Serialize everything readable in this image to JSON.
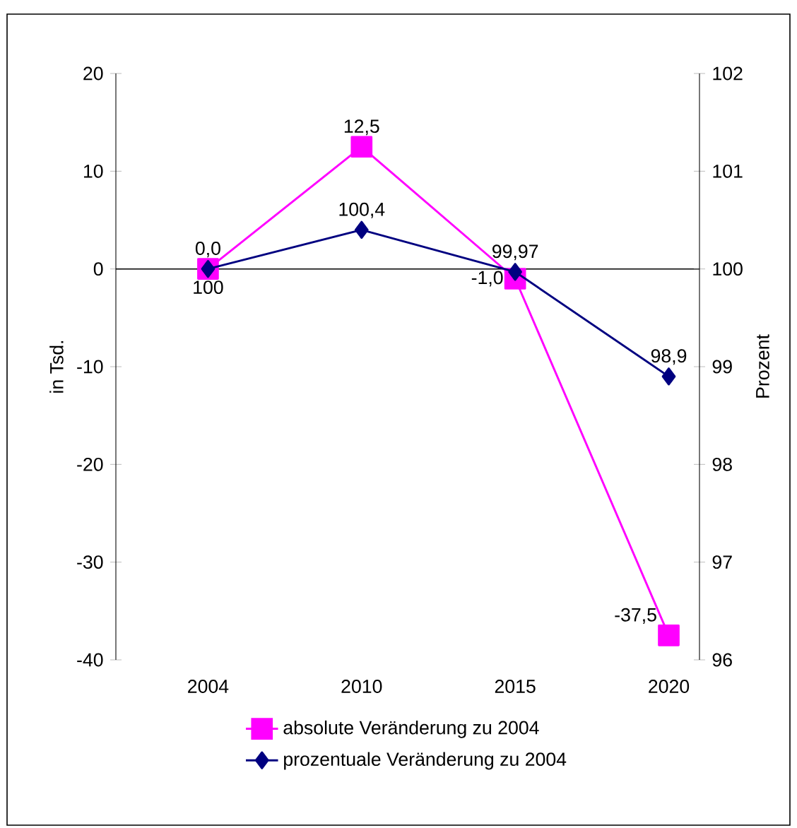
{
  "chart_data": {
    "type": "line",
    "categories": [
      "2004",
      "2010",
      "2015",
      "2020"
    ],
    "ylabel": "in Tsd.",
    "y2label": "Prozent",
    "ylim": [
      -40,
      20
    ],
    "yticks": [
      -40,
      -30,
      -20,
      -10,
      0,
      10,
      20
    ],
    "y2lim": [
      96,
      102
    ],
    "y2ticks": [
      96,
      97,
      98,
      99,
      100,
      101,
      102
    ],
    "legend": "bottom",
    "line_style": "solid",
    "series": [
      {
        "name": "absolute Veränderung zu 2004",
        "color": "#ff00ff",
        "marker": "square",
        "values": [
          0.0,
          12.5,
          -1.0,
          -37.5
        ],
        "value_labels": [
          "0,0",
          "12,5",
          "-1,0",
          "-37,5"
        ]
      },
      {
        "name": "prozentuale Veränderung zu 2004",
        "color": "#000080",
        "marker": "diamond",
        "axis": "y2",
        "values": [
          100,
          100.4,
          99.97,
          98.9
        ],
        "value_labels": [
          "100",
          "100,4",
          "99,97",
          "98,9"
        ]
      }
    ]
  }
}
